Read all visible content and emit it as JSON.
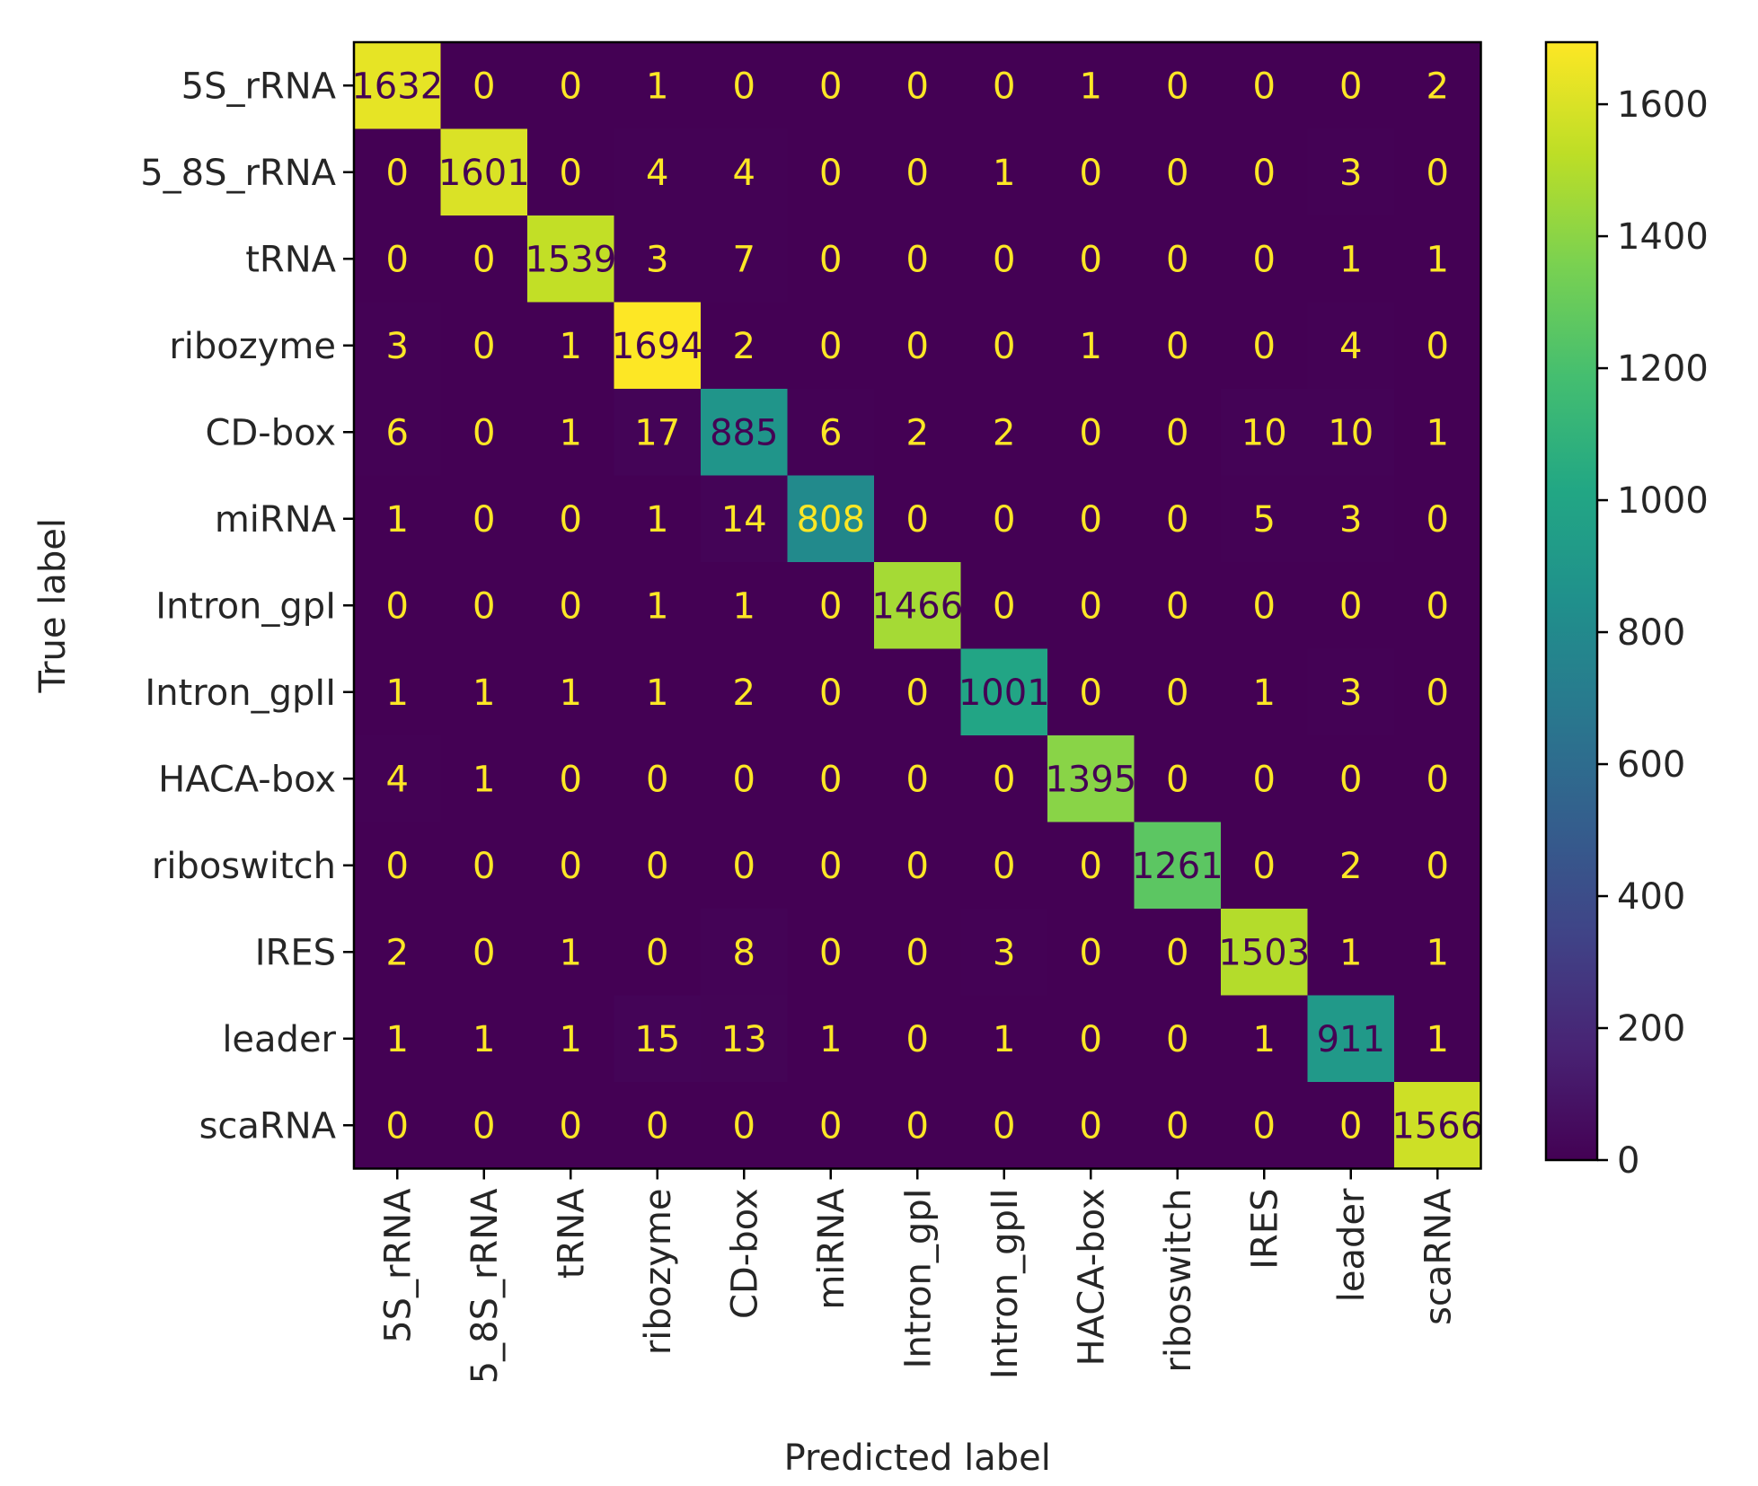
{
  "chart_data": {
    "type": "heatmap",
    "title": "",
    "xlabel": "Predicted label",
    "ylabel": "True label",
    "x_categories": [
      "5S_rRNA",
      "5_8S_rRNA",
      "tRNA",
      "ribozyme",
      "CD-box",
      "miRNA",
      "Intron_gpI",
      "Intron_gpII",
      "HACA-box",
      "riboswitch",
      "IRES",
      "leader",
      "scaRNA"
    ],
    "y_categories": [
      "5S_rRNA",
      "5_8S_rRNA",
      "tRNA",
      "ribozyme",
      "CD-box",
      "miRNA",
      "Intron_gpI",
      "Intron_gpII",
      "HACA-box",
      "riboswitch",
      "IRES",
      "leader",
      "scaRNA"
    ],
    "values": [
      [
        1632,
        0,
        0,
        1,
        0,
        0,
        0,
        0,
        1,
        0,
        0,
        0,
        2
      ],
      [
        0,
        1601,
        0,
        4,
        4,
        0,
        0,
        1,
        0,
        0,
        0,
        3,
        0
      ],
      [
        0,
        0,
        1539,
        3,
        7,
        0,
        0,
        0,
        0,
        0,
        0,
        1,
        1
      ],
      [
        3,
        0,
        1,
        1694,
        2,
        0,
        0,
        0,
        1,
        0,
        0,
        4,
        0
      ],
      [
        6,
        0,
        1,
        17,
        885,
        6,
        2,
        2,
        0,
        0,
        10,
        10,
        1
      ],
      [
        1,
        0,
        0,
        1,
        14,
        808,
        0,
        0,
        0,
        0,
        5,
        3,
        0
      ],
      [
        0,
        0,
        0,
        1,
        1,
        0,
        1466,
        0,
        0,
        0,
        0,
        0,
        0
      ],
      [
        1,
        1,
        1,
        1,
        2,
        0,
        0,
        1001,
        0,
        0,
        1,
        3,
        0
      ],
      [
        4,
        1,
        0,
        0,
        0,
        0,
        0,
        0,
        1395,
        0,
        0,
        0,
        0
      ],
      [
        0,
        0,
        0,
        0,
        0,
        0,
        0,
        0,
        0,
        1261,
        0,
        2,
        0
      ],
      [
        2,
        0,
        1,
        0,
        8,
        0,
        0,
        3,
        0,
        0,
        1503,
        1,
        1
      ],
      [
        1,
        1,
        1,
        15,
        13,
        1,
        0,
        1,
        0,
        0,
        1,
        911,
        1
      ],
      [
        0,
        0,
        0,
        0,
        0,
        0,
        0,
        0,
        0,
        0,
        0,
        0,
        1566
      ]
    ],
    "colormap": "viridis",
    "vmin": 0,
    "vmax": 1694,
    "colorbar_ticks": [
      0,
      200,
      400,
      600,
      800,
      1000,
      1200,
      1400,
      1600
    ],
    "grid": false
  }
}
